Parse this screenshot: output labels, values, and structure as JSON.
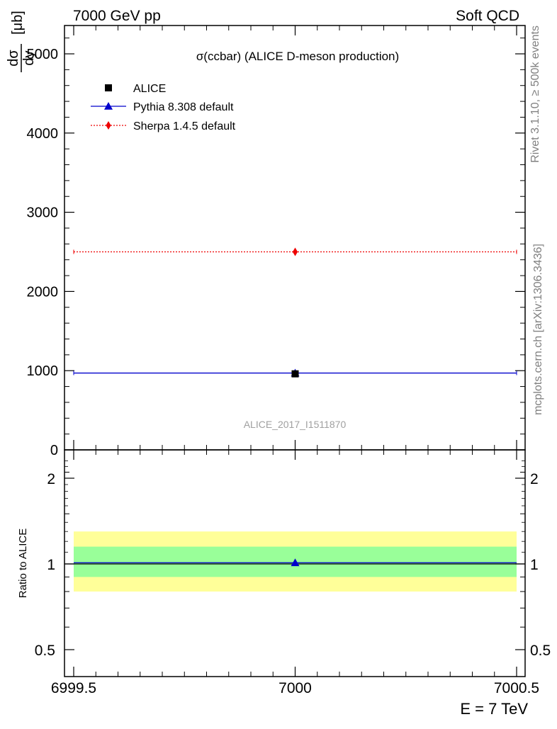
{
  "header": {
    "left": "7000 GeV pp",
    "right": "Soft QCD"
  },
  "side": {
    "rivet": "Rivet 3.1.10, ≥ 500k events",
    "mcplots": "mcplots.cern.ch [arXiv:1306.3436]"
  },
  "chart_data": [
    {
      "type": "scatter",
      "title": "σ(ccbar) (ALICE D-meson production)",
      "ylabel_num": "dσ",
      "ylabel_den": "dy",
      "ylabel_unit": "[μb]",
      "analysis_label": "ALICE_2017_I1511870",
      "xlim": [
        6999.5,
        7000.5
      ],
      "ylim": [
        0,
        5400
      ],
      "yticks": [
        0,
        1000,
        2000,
        3000,
        4000,
        5000
      ],
      "ytick_labels": [
        "0",
        "1000",
        "2000",
        "3000",
        "4000",
        "5000"
      ],
      "legend_position": "top-left",
      "series": [
        {
          "name": "ALICE",
          "kind": "data",
          "x": [
            7000
          ],
          "y": [
            960
          ],
          "color": "#000000",
          "marker": "square"
        },
        {
          "name": "Pythia 8.308 default",
          "kind": "mc",
          "x": [
            7000
          ],
          "y": [
            970
          ],
          "color": "#0000cc",
          "marker": "triangle",
          "line": "solid"
        },
        {
          "name": "Sherpa 1.4.5 default",
          "kind": "mc",
          "x": [
            7000
          ],
          "y": [
            2500
          ],
          "color": "#ee0000",
          "marker": "diamond",
          "line": "dotted"
        }
      ]
    },
    {
      "type": "scatter",
      "ylabel": "Ratio to ALICE",
      "xlabel": "E = 7 TeV",
      "xlim": [
        6999.5,
        7000.5
      ],
      "ylim": [
        0.4,
        2.3
      ],
      "yscale": "log",
      "yticks": [
        0.5,
        1,
        2
      ],
      "ytick_labels": [
        "0.5",
        "1",
        "2"
      ],
      "xticks": [
        6999.5,
        7000,
        7000.5
      ],
      "xtick_labels": [
        "6999.5",
        "7000",
        "7000.5"
      ],
      "bands": [
        {
          "low": 0.8,
          "high": 1.3,
          "color": "#ffff99"
        },
        {
          "low": 0.9,
          "high": 1.15,
          "color": "#99ff99"
        }
      ],
      "series": [
        {
          "name": "Pythia 8.308 default",
          "x": [
            7000
          ],
          "y": [
            1.01
          ],
          "color": "#0000cc",
          "marker": "triangle",
          "line": "solid"
        }
      ]
    }
  ]
}
